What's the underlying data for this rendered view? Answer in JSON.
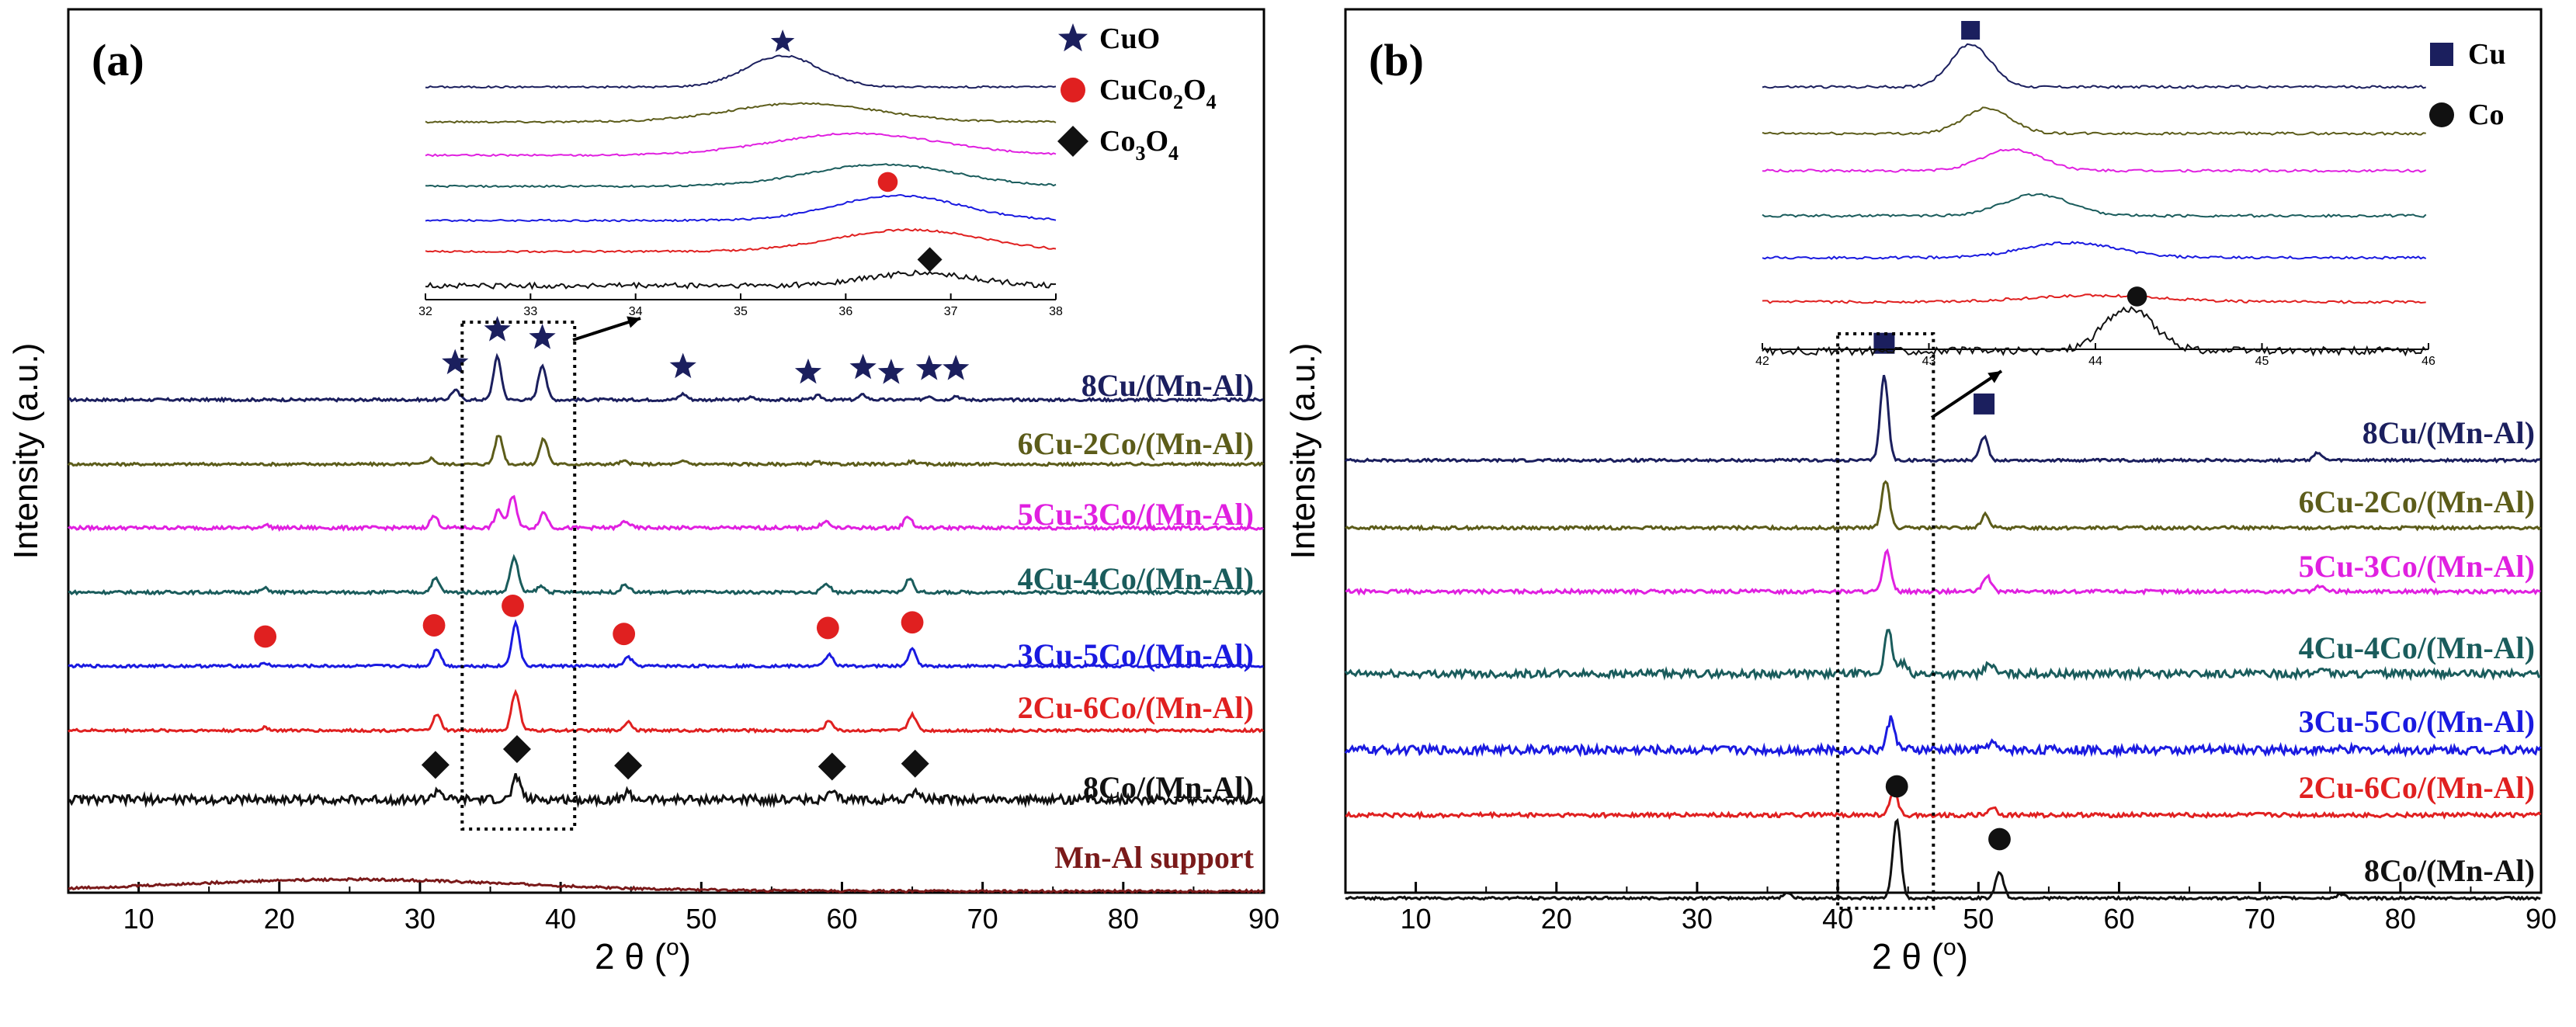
{
  "chart_data": [
    {
      "type": "line",
      "panel_label": "(a)",
      "title": "",
      "xlabel": "2 θ (",
      "xlabel_unit": "o",
      "xlabel_close": ")",
      "ylabel": "Intensity (a.u.)",
      "xlim": [
        5,
        90
      ],
      "xticks": [
        "10",
        "20",
        "30",
        "40",
        "50",
        "60",
        "70",
        "80",
        "90"
      ],
      "series": [
        {
          "name": "8Cu/(Mn-Al)",
          "color": "#1b1f5e",
          "peaks": [
            [
              32.5,
              0.5
            ],
            [
              35.5,
              2.2
            ],
            [
              38.7,
              1.8
            ],
            [
              48.7,
              0.3
            ],
            [
              53.5,
              0.12
            ],
            [
              58.3,
              0.2
            ],
            [
              61.5,
              0.25
            ],
            [
              66.2,
              0.2
            ],
            [
              68.1,
              0.2
            ]
          ],
          "noise": 0.07
        },
        {
          "name": "6Cu-2Co/(Mn-Al)",
          "color": "#5c5c1a",
          "peaks": [
            [
              30.8,
              0.3
            ],
            [
              35.6,
              1.5
            ],
            [
              38.8,
              1.3
            ],
            [
              44.5,
              0.15
            ],
            [
              48.8,
              0.15
            ],
            [
              58.2,
              0.12
            ],
            [
              65.0,
              0.15
            ]
          ],
          "noise": 0.07
        },
        {
          "name": "5Cu-3Co/(Mn-Al)",
          "color": "#e020e0",
          "peaks": [
            [
              19.0,
              0.15
            ],
            [
              31.0,
              0.6
            ],
            [
              35.6,
              0.9
            ],
            [
              36.6,
              1.6
            ],
            [
              38.8,
              0.8
            ],
            [
              44.6,
              0.35
            ],
            [
              58.8,
              0.35
            ],
            [
              64.7,
              0.6
            ]
          ],
          "noise": 0.09
        },
        {
          "name": "4Cu-4Co/(Mn-Al)",
          "color": "#1a5c5c",
          "peaks": [
            [
              19.0,
              0.2
            ],
            [
              31.1,
              0.7
            ],
            [
              36.7,
              1.8
            ],
            [
              38.6,
              0.3
            ],
            [
              44.6,
              0.4
            ],
            [
              58.9,
              0.45
            ],
            [
              64.8,
              0.7
            ]
          ],
          "noise": 0.08
        },
        {
          "name": "3Cu-5Co/(Mn-Al)",
          "color": "#1a1ae0",
          "peaks": [
            [
              19.0,
              0.12
            ],
            [
              31.2,
              0.9
            ],
            [
              36.8,
              2.2
            ],
            [
              44.8,
              0.45
            ],
            [
              59.1,
              0.6
            ],
            [
              65.0,
              0.85
            ]
          ],
          "noise": 0.07
        },
        {
          "name": "2Cu-6Co/(Mn-Al)",
          "color": "#e02020",
          "peaks": [
            [
              19.0,
              0.15
            ],
            [
              31.2,
              0.8
            ],
            [
              36.8,
              2.0
            ],
            [
              44.8,
              0.45
            ],
            [
              59.1,
              0.5
            ],
            [
              65.0,
              0.8
            ]
          ],
          "noise": 0.07
        },
        {
          "name": "8Co/(Mn-Al)",
          "color": "#111111",
          "peaks": [
            [
              31.3,
              0.5
            ],
            [
              36.9,
              1.2
            ],
            [
              44.8,
              0.35
            ],
            [
              59.3,
              0.3
            ],
            [
              65.2,
              0.45
            ]
          ],
          "noise": 0.22
        },
        {
          "name": "Mn-Al support",
          "color": "#7a1a1a",
          "peaks": [],
          "hump": [
            25,
            12,
            0.6
          ],
          "noise": 0.06
        }
      ],
      "markers": [
        {
          "symbol": "star",
          "color": "#1b1f5e",
          "series": 0,
          "x": [
            32.5,
            35.5,
            38.7,
            48.7,
            57.6,
            61.5,
            63.5,
            66.2,
            68.1
          ]
        },
        {
          "symbol": "circle",
          "color": "#e02020",
          "series": 4,
          "x": [
            19.0,
            31.0,
            36.6,
            44.5,
            59.0,
            65.0
          ]
        },
        {
          "symbol": "diamond",
          "color": "#111111",
          "series": 6,
          "x": [
            31.1,
            36.9,
            44.8,
            59.3,
            65.2
          ]
        }
      ],
      "legend": [
        {
          "symbol": "star",
          "label": "CuO",
          "label_sub": "",
          "color": "#1b1f5e"
        },
        {
          "symbol": "circle",
          "label": "CuCo",
          "label_sub": "2",
          "label_after": "O",
          "label_sub2": "4",
          "color": "#e02020"
        },
        {
          "symbol": "diamond",
          "label": "Co",
          "label_sub": "3",
          "label_after": "O",
          "label_sub2": "4",
          "color": "#111111"
        }
      ],
      "inset": {
        "xlim": [
          32,
          38
        ],
        "xticks": [
          "32",
          "33",
          "34",
          "35",
          "36",
          "37",
          "38"
        ],
        "series_peaks": [
          [
            35.4,
            1.0,
            0.35
          ],
          [
            35.6,
            0.6,
            0.7
          ],
          [
            36.1,
            0.7,
            0.8
          ],
          [
            36.35,
            0.7,
            0.7
          ],
          [
            36.5,
            0.8,
            0.6
          ],
          [
            36.6,
            0.7,
            0.7
          ],
          [
            36.7,
            0.4,
            0.5
          ]
        ],
        "markers": [
          {
            "symbol": "star",
            "x": 35.4,
            "series": 0
          },
          {
            "symbol": "circle",
            "x": 36.4,
            "series": 4
          },
          {
            "symbol": "diamond",
            "x": 36.8,
            "series": 6
          }
        ]
      }
    },
    {
      "type": "line",
      "panel_label": "(b)",
      "title": "",
      "xlabel": "2 θ (",
      "xlabel_unit": "o",
      "xlabel_close": ")",
      "ylabel": "Intensity (a.u.)",
      "xlim": [
        5,
        90
      ],
      "xticks": [
        "10",
        "20",
        "30",
        "40",
        "50",
        "60",
        "70",
        "80",
        "90"
      ],
      "series": [
        {
          "name": "8Cu/(Mn-Al)",
          "color": "#1b1f5e",
          "peaks": [
            [
              43.3,
              3.2
            ],
            [
              50.4,
              0.9
            ],
            [
              74.1,
              0.3
            ]
          ],
          "noise": 0.05
        },
        {
          "name": "6Cu-2Co/(Mn-Al)",
          "color": "#5c5c1a",
          "peaks": [
            [
              43.4,
              1.8
            ],
            [
              50.5,
              0.5
            ]
          ],
          "noise": 0.06
        },
        {
          "name": "5Cu-3Co/(Mn-Al)",
          "color": "#e020e0",
          "peaks": [
            [
              43.5,
              1.5
            ],
            [
              50.6,
              0.6
            ],
            [
              74.3,
              0.2
            ]
          ],
          "noise": 0.07
        },
        {
          "name": "4Cu-4Co/(Mn-Al)",
          "color": "#1a5c5c",
          "peaks": [
            [
              43.6,
              1.6
            ],
            [
              44.6,
              0.4
            ],
            [
              50.8,
              0.4
            ],
            [
              74.5,
              0.25
            ]
          ],
          "noise": 0.14
        },
        {
          "name": "3Cu-5Co/(Mn-Al)",
          "color": "#1a1ae0",
          "peaks": [
            [
              43.8,
              1.2
            ],
            [
              50.9,
              0.3
            ]
          ],
          "noise": 0.16
        },
        {
          "name": "2Cu-6Co/(Mn-Al)",
          "color": "#e02020",
          "peaks": [
            [
              44.0,
              0.9
            ],
            [
              51.0,
              0.3
            ]
          ],
          "noise": 0.08
        },
        {
          "name": "8Co/(Mn-Al)",
          "color": "#111111",
          "peaks": [
            [
              36.4,
              0.2
            ],
            [
              44.2,
              3.0
            ],
            [
              51.5,
              1.0
            ],
            [
              75.8,
              0.15
            ]
          ],
          "noise": 0.05
        }
      ],
      "markers": [
        {
          "symbol": "square",
          "color": "#1b1f5e",
          "series": 0,
          "x": [
            43.3,
            50.4
          ]
        },
        {
          "symbol": "circle-black",
          "color": "#111111",
          "series": 6,
          "x": [
            44.2,
            51.5
          ]
        }
      ],
      "legend": [
        {
          "symbol": "square",
          "label": "Cu",
          "color": "#1b1f5e"
        },
        {
          "symbol": "circle-black",
          "label": "Co",
          "color": "#111111"
        }
      ],
      "inset": {
        "xlim": [
          42,
          46
        ],
        "xticks": [
          "42",
          "43",
          "44",
          "45",
          "46"
        ],
        "series_peaks": [
          [
            43.25,
            1.0,
            0.12
          ],
          [
            43.35,
            0.6,
            0.14
          ],
          [
            43.5,
            0.5,
            0.18
          ],
          [
            43.65,
            0.5,
            0.2
          ],
          [
            43.85,
            0.35,
            0.28
          ],
          [
            44.0,
            0.15,
            0.4
          ],
          [
            44.2,
            1.0,
            0.15
          ]
        ],
        "markers": [
          {
            "symbol": "square",
            "x": 43.25,
            "series": 0
          },
          {
            "symbol": "circle-black",
            "x": 44.25,
            "series": 6
          }
        ]
      }
    }
  ]
}
